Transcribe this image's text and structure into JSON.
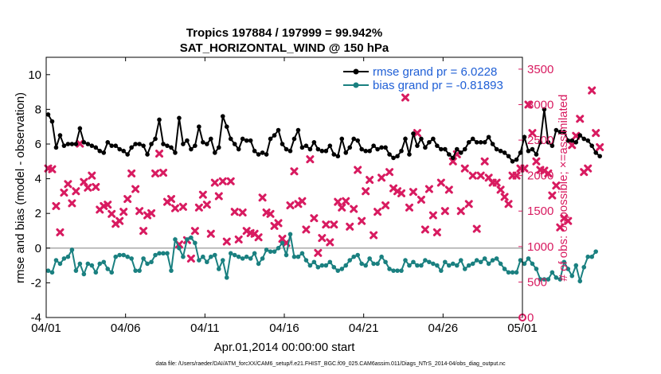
{
  "chart_data": {
    "type": "line",
    "title_line1": "Tropics 197884 / 197999 = 99.942%",
    "title_line2": "SAT_HORIZONTAL_WIND @ 150 hPa",
    "xlabel": "Apr.01,2014 00:00:00 start",
    "ylabel_left": "rmse and bias (model - observation)",
    "ylabel_right": "# of obs: o=possible; ×=assimilated",
    "xlim": [
      0,
      30
    ],
    "ylim_left": [
      -4,
      11
    ],
    "ylim_right": [
      0,
      3667
    ],
    "x_ticks": [
      {
        "x": 0,
        "label": "04/01"
      },
      {
        "x": 5,
        "label": "04/06"
      },
      {
        "x": 10,
        "label": "04/11"
      },
      {
        "x": 15,
        "label": "04/16"
      },
      {
        "x": 20,
        "label": "04/21"
      },
      {
        "x": 25,
        "label": "04/26"
      },
      {
        "x": 30,
        "label": "05/01"
      }
    ],
    "y_ticks_left": [
      -4,
      -2,
      0,
      2,
      4,
      6,
      8,
      10
    ],
    "y_ticks_right": [
      0,
      500,
      1000,
      1500,
      2000,
      2500,
      3000,
      3500
    ],
    "legend_position": "top-right",
    "series": [
      {
        "name": "rmse grand pr = 6.0228",
        "axis": "left",
        "color": "#000000",
        "step": 0.25,
        "values": [
          7.7,
          7.3,
          5.8,
          6.5,
          5.9,
          6.0,
          6.0,
          6.0,
          6.9,
          6.1,
          6.0,
          5.9,
          5.8,
          5.6,
          5.5,
          6.1,
          5.9,
          5.9,
          5.7,
          5.6,
          5.4,
          5.8,
          6.0,
          6.0,
          5.9,
          5.4,
          6.0,
          6.3,
          7.4,
          6.0,
          5.9,
          5.8,
          5.5,
          7.5,
          6.0,
          6.2,
          5.7,
          5.9,
          7.0,
          6.1,
          6.0,
          6.3,
          5.5,
          5.8,
          7.6,
          7.0,
          6.3,
          6.0,
          5.7,
          6.3,
          6.2,
          6.2,
          5.6,
          5.4,
          5.5,
          5.4,
          6.3,
          6.5,
          6.8,
          6.0,
          5.7,
          5.6,
          6.3,
          6.8,
          5.8,
          5.9,
          5.7,
          6.1,
          5.7,
          5.6,
          5.6,
          5.9,
          5.4,
          5.3,
          6.3,
          5.5,
          5.8,
          6.3,
          6.2,
          5.7,
          5.6,
          5.6,
          5.9,
          5.7,
          5.8,
          5.8,
          5.4,
          5.2,
          5.3,
          5.6,
          6.3,
          5.4,
          6.6,
          5.9,
          6.3,
          5.8,
          6.1,
          6.3,
          5.9,
          5.7,
          5.7,
          5.4,
          5.2,
          5.7,
          5.5,
          5.7,
          6.1,
          6.3,
          6.1,
          6.1,
          6.1,
          6.4,
          6.0,
          5.7,
          5.6,
          5.5,
          5.3,
          5.0,
          5.1,
          5.5,
          6.4,
          5.6,
          5.7,
          5.4,
          6.1,
          8.0,
          6.1,
          5.9,
          6.8,
          6.7,
          6.7,
          6.2,
          6.2,
          6.1,
          6.5,
          6.3,
          6.2,
          5.9,
          5.5,
          5.3
        ]
      },
      {
        "name": "bias grand pr = -0.81893",
        "axis": "left",
        "color": "#1a8080",
        "step": 0.25,
        "values": [
          -1.3,
          -1.4,
          -0.7,
          -0.9,
          -0.6,
          -0.5,
          -0.1,
          -1.3,
          -0.9,
          -1.5,
          -0.9,
          -1.0,
          -1.4,
          -0.9,
          -0.8,
          -1.2,
          -1.4,
          -0.5,
          -0.4,
          -0.4,
          -0.5,
          -0.6,
          -1.3,
          -1.3,
          -0.6,
          -0.9,
          -0.8,
          -0.4,
          -0.3,
          -0.3,
          -0.3,
          -1.3,
          0.5,
          0.0,
          -0.5,
          0.5,
          0.6,
          0.3,
          -0.7,
          -0.5,
          -0.8,
          -0.5,
          -0.4,
          -1.2,
          -0.7,
          -1.7,
          -0.3,
          -0.4,
          -0.5,
          -0.6,
          -0.5,
          -0.6,
          -0.3,
          -0.9,
          -0.6,
          -0.1,
          -0.2,
          -0.2,
          0.0,
          0.3,
          -0.4,
          0.8,
          -0.5,
          -0.5,
          -0.3,
          -0.7,
          -1.0,
          -0.8,
          -1.1,
          -1.0,
          -1.0,
          -0.8,
          -1.1,
          -1.3,
          -1.2,
          -1.0,
          -0.7,
          -0.5,
          -0.4,
          -0.9,
          -1.0,
          -0.6,
          -0.9,
          -0.9,
          -0.5,
          -0.8,
          -1.2,
          -1.3,
          -1.3,
          -1.3,
          -0.7,
          -1.0,
          -0.8,
          -1.0,
          -1.0,
          -0.7,
          -0.8,
          -0.9,
          -1.0,
          -1.3,
          -0.8,
          -1.0,
          -0.9,
          -1.0,
          -0.7,
          -1.2,
          -1.0,
          -0.9,
          -0.7,
          -0.8,
          -0.6,
          -0.9,
          -0.7,
          -0.6,
          -0.9,
          -1.2,
          -1.4,
          -1.4,
          -1.4,
          -0.7,
          -0.9,
          -0.6,
          -0.9,
          -1.2,
          -1.8,
          -1.8,
          -1.8,
          -1.4,
          -1.7,
          -1.8,
          -0.8,
          -1.2,
          -1.6,
          -1.0,
          -1.9,
          -1.1,
          -0.5,
          -0.5,
          -0.2
        ]
      },
      {
        "name": "observations assimilated",
        "axis": "right",
        "color": "#d81b60",
        "marker": "x",
        "step": 0.25,
        "values": [
          2100,
          2090,
          1570,
          1200,
          1760,
          1880,
          1610,
          1780,
          2450,
          1910,
          1830,
          2000,
          1840,
          1520,
          1570,
          1590,
          1460,
          1320,
          1360,
          1490,
          1670,
          2030,
          1810,
          1500,
          1220,
          1440,
          1470,
          2030,
          2310,
          2040,
          1630,
          1670,
          1540,
          1030,
          1560,
          1090,
          830,
          1220,
          1550,
          1730,
          1590,
          1180,
          1900,
          1710,
          1920,
          1070,
          1920,
          1490,
          1100,
          1480,
          1220,
          1190,
          1180,
          1130,
          1690,
          1480,
          1460,
          1290,
          1330,
          1110,
          1050,
          1580,
          2060,
          1600,
          1640,
          1240,
          2230,
          1400,
          910,
          1120,
          1310,
          1060,
          1310,
          1630,
          1550,
          1640,
          1280,
          1530,
          2080,
          1360,
          1780,
          1940,
          1160,
          1490,
          1970,
          1580,
          2050,
          1820,
          1780,
          1750,
          3100,
          1550,
          1770,
          2600,
          1660,
          1240,
          1810,
          1440,
          1200,
          1900,
          1500,
          1800,
          2200,
          2300,
          1500,
          2100,
          1600,
          2000,
          1250,
          2000,
          2200,
          1970,
          1900,
          1900,
          1800,
          1700,
          1600,
          2000,
          2000,
          2100,
          2100,
          3000,
          2600,
          2200,
          2080,
          2070,
          2030,
          1720,
          1860,
          1270,
          1400,
          1360,
          2430,
          2560,
          2800,
          2050,
          2100,
          3200,
          2600,
          2400
        ]
      }
    ]
  },
  "footnote": "data file: /Users/raeder/DAI/ATM_forcXX/CAM6_setup/f.e21.FHIST_BGC.f09_025.CAM6assim.011/Diags_NTrS_2014-04/obs_diag_output.nc"
}
